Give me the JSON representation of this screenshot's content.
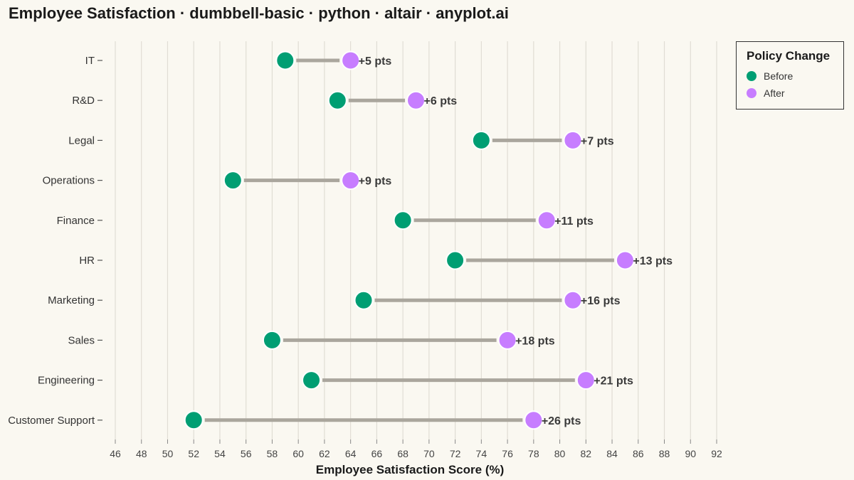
{
  "chart_data": {
    "type": "dumbbell",
    "title": "Employee Satisfaction · dumbbell-basic · python · altair · anyplot.ai",
    "xlabel": "Employee Satisfaction Score (%)",
    "ylabel": "",
    "xlim": [
      46,
      92
    ],
    "x_ticks": [
      46,
      48,
      50,
      52,
      54,
      56,
      58,
      60,
      62,
      64,
      66,
      68,
      70,
      72,
      74,
      76,
      78,
      80,
      82,
      84,
      86,
      88,
      90,
      92
    ],
    "grid": "vertical",
    "legend": {
      "title": "Policy Change",
      "placement": "top-right",
      "entries": [
        {
          "name": "Before",
          "color": "#009E73"
        },
        {
          "name": "After",
          "color": "#C77DFF"
        }
      ]
    },
    "colors": {
      "before": "#009E73",
      "after": "#C77DFF",
      "connector": "#AAA69D"
    },
    "categories": [
      "IT",
      "R&D",
      "Legal",
      "Operations",
      "Finance",
      "HR",
      "Marketing",
      "Sales",
      "Engineering",
      "Customer Support"
    ],
    "series": [
      {
        "name": "Before",
        "values": [
          59,
          63,
          74,
          55,
          68,
          72,
          65,
          58,
          61,
          52
        ]
      },
      {
        "name": "After",
        "values": [
          64,
          69,
          81,
          64,
          79,
          85,
          81,
          76,
          82,
          78
        ]
      }
    ],
    "delta_labels": [
      "+5 pts",
      "+6 pts",
      "+7 pts",
      "+9 pts",
      "+11 pts",
      "+13 pts",
      "+16 pts",
      "+18 pts",
      "+21 pts",
      "+26 pts"
    ]
  }
}
